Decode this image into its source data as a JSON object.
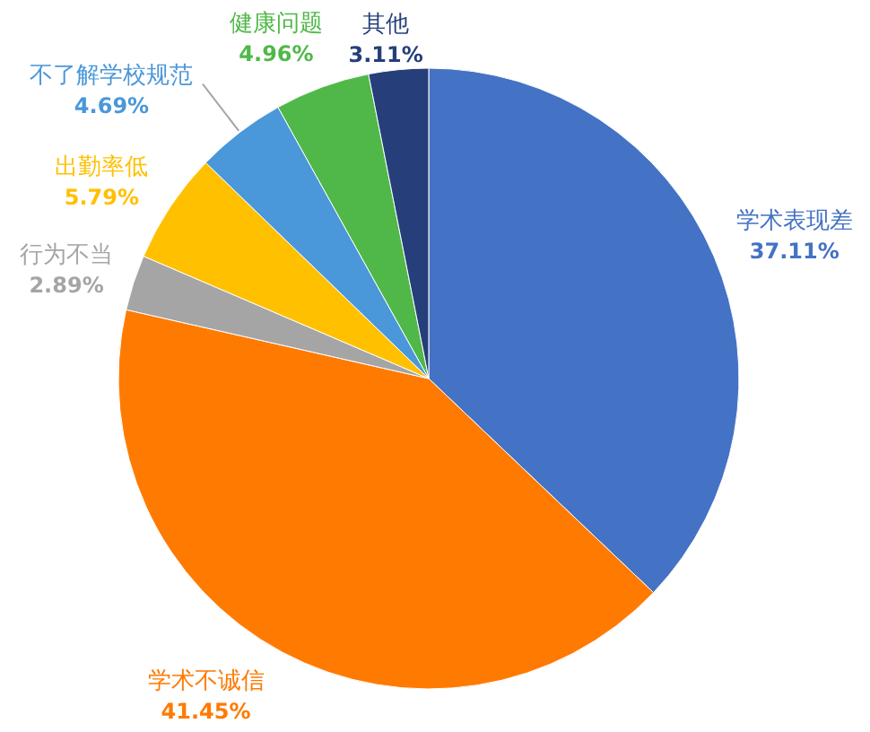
{
  "chart_data": {
    "type": "pie",
    "categories": [
      "学术表现差",
      "学术不诚信",
      "行为不当",
      "出勤率低",
      "不了解学校规范",
      "健康问题",
      "其他"
    ],
    "values": [
      37.11,
      41.45,
      2.89,
      5.79,
      4.69,
      4.96,
      3.11
    ],
    "colors": [
      "#4472c4",
      "#ff7a00",
      "#a5a5a5",
      "#ffc000",
      "#4a97d9",
      "#50b848",
      "#263f7a"
    ],
    "value_labels": [
      "37.11%",
      "41.45%",
      "2.89%",
      "5.79%",
      "4.69%",
      "4.96%",
      "3.11%"
    ]
  }
}
